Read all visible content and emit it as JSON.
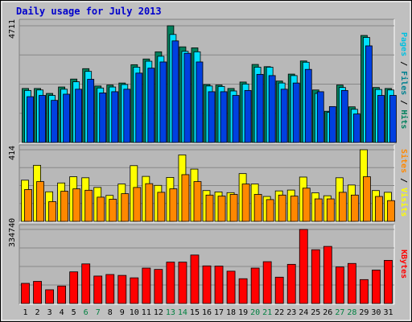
{
  "title": "Daily usage for July 2013",
  "colors": {
    "background": "#c0c0c0",
    "panel": "#b8b8b8",
    "grid": "#888888",
    "hits": "#00805c",
    "files": "#00e0ff",
    "pages": "#0040e0",
    "visits": "#ffff00",
    "sites": "#ff8800",
    "kbytes": "#ff0000",
    "title": "#0000cc",
    "weekend": "#008040"
  },
  "chart_data": [
    {
      "type": "bar",
      "panel": "hits_files_pages",
      "ymax_label": "4711",
      "ylim": [
        0,
        4711
      ],
      "legend": [
        {
          "label": "Pages",
          "color": "#00c0e0"
        },
        {
          "label": "Files",
          "color": "#008090"
        },
        {
          "label": "Hits",
          "color": "#00805c"
        }
      ],
      "separator": "/",
      "categories": [
        "1",
        "2",
        "3",
        "4",
        "5",
        "6",
        "7",
        "8",
        "9",
        "10",
        "11",
        "12",
        "13",
        "14",
        "15",
        "16",
        "17",
        "18",
        "19",
        "20",
        "21",
        "22",
        "23",
        "24",
        "25",
        "26",
        "27",
        "28",
        "29",
        "30",
        "31"
      ],
      "series": [
        {
          "name": "Hits",
          "values": [
            2180,
            2180,
            1980,
            2240,
            2560,
            2980,
            2280,
            2320,
            2400,
            3140,
            3370,
            3660,
            4711,
            3860,
            3820,
            2340,
            2320,
            2180,
            2440,
            3150,
            3060,
            2480,
            2760,
            3290,
            2120,
            1260,
            2320,
            1440,
            4320,
            2220,
            2180
          ]
        },
        {
          "name": "Files",
          "values": [
            2100,
            2120,
            1900,
            2150,
            2450,
            2870,
            2200,
            2240,
            2340,
            3040,
            3280,
            3480,
            4360,
            3680,
            3660,
            2280,
            2260,
            2080,
            2360,
            3040,
            3040,
            2400,
            2700,
            3240,
            1980,
            1220,
            2220,
            1340,
            4240,
            2140,
            2120
          ]
        },
        {
          "name": "Pages",
          "values": [
            1850,
            1900,
            1700,
            1950,
            2150,
            2550,
            2000,
            2050,
            2150,
            2800,
            3000,
            3250,
            4100,
            3600,
            3250,
            2050,
            2050,
            1900,
            2100,
            2750,
            2700,
            2150,
            2400,
            2950,
            2050,
            1450,
            2100,
            1150,
            3900,
            1900,
            1900
          ]
        }
      ]
    },
    {
      "type": "bar",
      "panel": "visits_sites",
      "ymax_label": "414",
      "ylim": [
        0,
        414
      ],
      "legend": [
        {
          "label": "Sites",
          "color": "#ff8800"
        },
        {
          "label": "Visits",
          "color": "#ffff00"
        }
      ],
      "separator": "/",
      "categories": [
        "1",
        "2",
        "3",
        "4",
        "5",
        "6",
        "7",
        "8",
        "9",
        "10",
        "11",
        "12",
        "13",
        "14",
        "15",
        "16",
        "17",
        "18",
        "19",
        "20",
        "21",
        "22",
        "23",
        "24",
        "25",
        "26",
        "27",
        "28",
        "29",
        "30",
        "31"
      ],
      "series": [
        {
          "name": "Visits",
          "values": [
            238,
            324,
            171,
            222,
            258,
            252,
            196,
            150,
            216,
            322,
            260,
            208,
            254,
            384,
            302,
            178,
            170,
            166,
            276,
            216,
            144,
            176,
            181,
            256,
            165,
            148,
            252,
            210,
            414,
            178,
            168
          ]
        },
        {
          "name": "Sites",
          "values": [
            184,
            230,
            114,
            174,
            188,
            180,
            140,
            128,
            160,
            196,
            218,
            168,
            188,
            270,
            230,
            152,
            146,
            156,
            216,
            156,
            126,
            152,
            146,
            192,
            130,
            130,
            168,
            152,
            258,
            144,
            120
          ]
        }
      ]
    },
    {
      "type": "bar",
      "panel": "kbytes",
      "ymax_label": "334740",
      "ylim": [
        0,
        334740
      ],
      "legend": [
        {
          "label": "KBytes",
          "color": "#ff0000"
        }
      ],
      "categories": [
        "1",
        "2",
        "3",
        "4",
        "5",
        "6",
        "7",
        "8",
        "9",
        "10",
        "11",
        "12",
        "13",
        "14",
        "15",
        "16",
        "17",
        "18",
        "19",
        "20",
        "21",
        "22",
        "23",
        "24",
        "25",
        "26",
        "27",
        "28",
        "29",
        "30",
        "31"
      ],
      "series": [
        {
          "name": "KBytes",
          "values": [
            91000,
            100000,
            62000,
            79000,
            143000,
            179000,
            124000,
            131000,
            127000,
            116000,
            160000,
            154000,
            187000,
            187000,
            219000,
            170000,
            169000,
            146000,
            112000,
            160000,
            189000,
            119000,
            177000,
            334740,
            243000,
            258000,
            165000,
            181000,
            108000,
            151000,
            195000
          ]
        }
      ]
    }
  ],
  "weekend_days": [
    "6",
    "7",
    "13",
    "14",
    "20",
    "21",
    "27",
    "28"
  ]
}
